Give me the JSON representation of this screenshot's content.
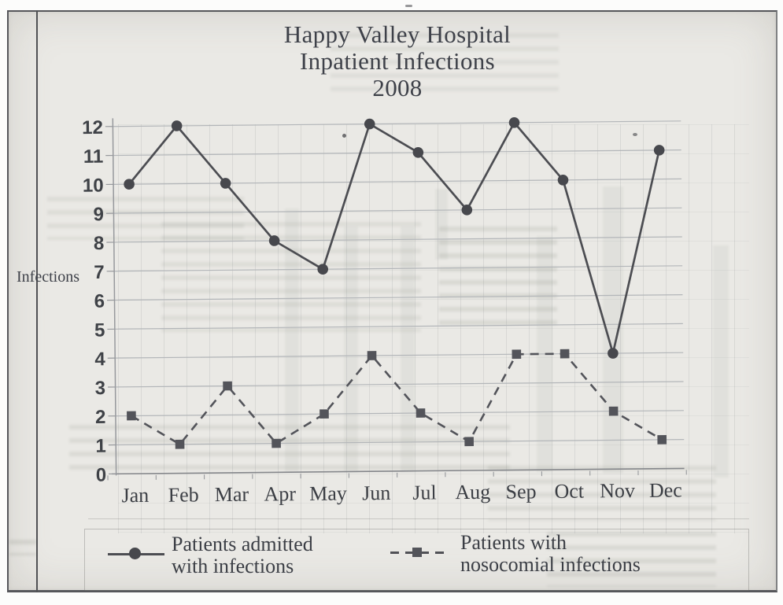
{
  "page": {
    "paper_color": "#eae9e5",
    "border_color": "#55565a",
    "ink_color": "#4c4d52"
  },
  "chart_data": {
    "type": "line",
    "title": "Happy Valley Hospital Inpatient Infections 2008",
    "title_lines": [
      "Happy Valley Hospital",
      "Inpatient Infections",
      "2008"
    ],
    "ylabel": "Infections",
    "xlabel": "",
    "categories": [
      "Jan",
      "Feb",
      "Mar",
      "Apr",
      "May",
      "Jun",
      "Jul",
      "Aug",
      "Sep",
      "Oct",
      "Nov",
      "Dec"
    ],
    "y_ticks": [
      0,
      1,
      2,
      3,
      4,
      5,
      6,
      7,
      8,
      9,
      10,
      11,
      12
    ],
    "ylim": [
      0,
      12
    ],
    "grid": "horizontal gridlines at every integer from 0 to 12",
    "legend_position": "bottom",
    "grid_color": "#b3b6b9",
    "axis_color": "#97999d",
    "text_color": "#3f4247",
    "series": [
      {
        "name": "Patients admitted with infections",
        "legend_lines": [
          "Patients admitted",
          "with infections"
        ],
        "marker": "circle",
        "line_style": "solid",
        "color": "#4c4d52",
        "values": [
          10,
          12,
          10,
          8,
          7,
          12,
          11,
          9,
          12,
          10,
          4,
          11
        ]
      },
      {
        "name": "Patients with nosocomial infections",
        "legend_lines": [
          "Patients with",
          "nosocomial infections"
        ],
        "marker": "square",
        "line_style": "dashed",
        "color": "#53545a",
        "values": [
          2,
          1,
          3,
          1,
          2,
          4,
          2,
          1,
          4,
          4,
          2,
          1
        ]
      }
    ]
  }
}
